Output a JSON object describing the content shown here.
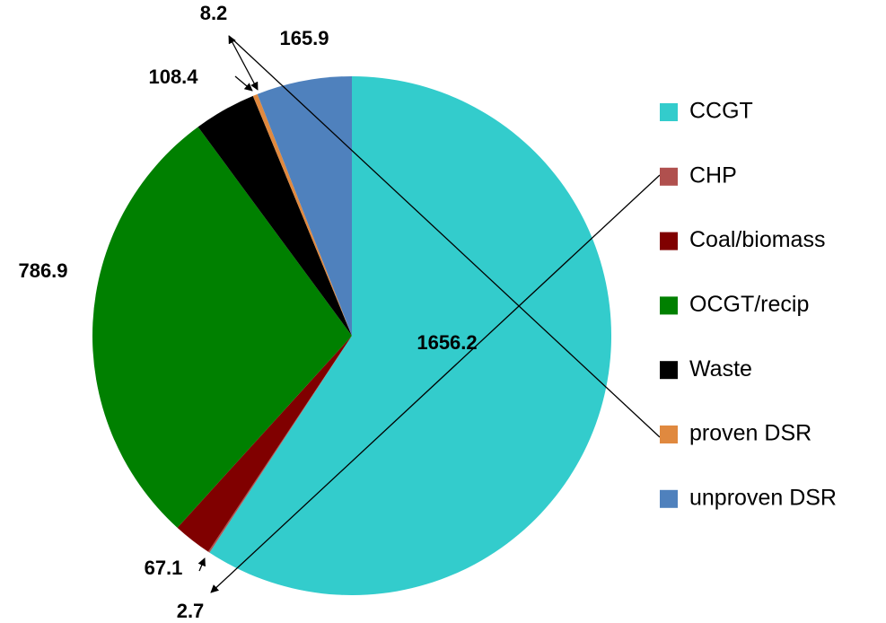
{
  "chart_data": {
    "type": "pie",
    "categories": [
      "CCGT",
      "CHP",
      "Coal/biomass",
      "OCGT/recip",
      "Waste",
      "proven DSR",
      "unproven DSR"
    ],
    "values": [
      1656.2,
      2.7,
      67.1,
      786.9,
      108.4,
      8.2,
      165.9
    ],
    "colors": [
      "#33cccc",
      "#b0504e",
      "#800000",
      "#008000",
      "#000000",
      "#e0893f",
      "#4f81bd"
    ],
    "start_angle": 0,
    "direction": "clockwise",
    "legend": "right"
  }
}
